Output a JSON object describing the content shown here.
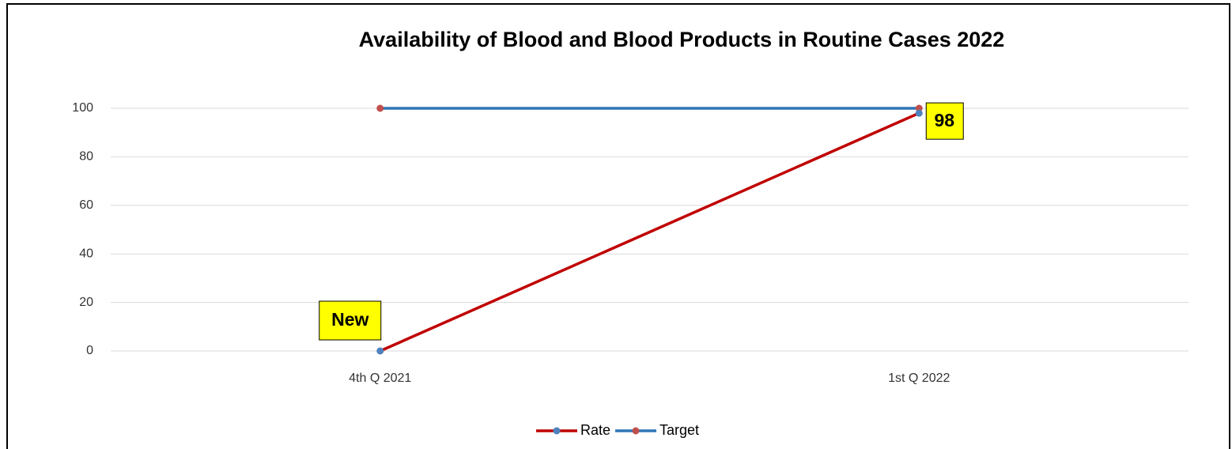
{
  "chart_data": {
    "type": "line",
    "title": "Availability of Blood and Blood Products in Routine Cases 2022",
    "categories": [
      "4th  Q 2021",
      "1st Q 2022"
    ],
    "series": [
      {
        "name": "Rate",
        "color": "#c00000",
        "marker_color": "#4f81bd",
        "values": [
          0,
          98
        ],
        "value_labels": [
          null,
          "98"
        ]
      },
      {
        "name": "Target",
        "color": "#2e75b6",
        "marker_color": "#c0504d",
        "values": [
          100,
          100
        ]
      }
    ],
    "annotation": "New",
    "ylim": [
      0,
      100
    ],
    "yticks": [
      0,
      20,
      40,
      60,
      80,
      100
    ],
    "grid": true,
    "legend": "bottom"
  }
}
